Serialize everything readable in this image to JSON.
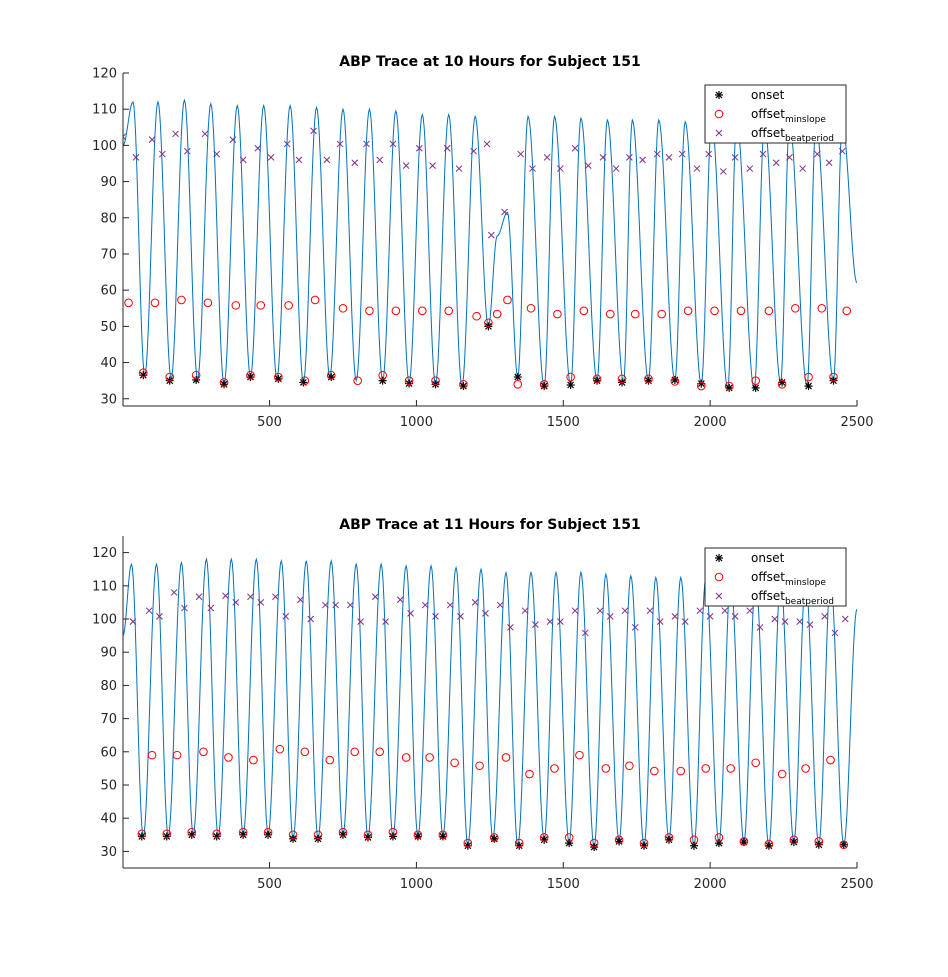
{
  "colors": {
    "trace": "#0072bd",
    "onset": "#000000",
    "offset_minslope": "#ff0000",
    "offset_beatperiod": "#7e2f8e",
    "axis": "#262626"
  },
  "legend": {
    "placement": "top-right",
    "entries": [
      {
        "key": "onset",
        "main": "onset",
        "sub": "",
        "marker": "star-icon"
      },
      {
        "key": "offset_minslope",
        "main": "offset",
        "sub": "minslope",
        "marker": "circle-icon"
      },
      {
        "key": "offset_beatperiod",
        "main": "offset",
        "sub": "beatperiod",
        "marker": "x-icon"
      }
    ]
  },
  "chart_data": [
    {
      "type": "line",
      "title": "ABP Trace at 10 Hours for Subject 151",
      "xlabel": "",
      "ylabel": "",
      "xlim": [
        1,
        2500
      ],
      "ylim": [
        28,
        120
      ],
      "xticks": [
        500,
        1000,
        1500,
        2000,
        2500
      ],
      "yticks": [
        30,
        40,
        50,
        60,
        70,
        80,
        90,
        100,
        110,
        120
      ],
      "grid": false,
      "series": [
        {
          "name": "onset",
          "kind": "marker",
          "x": [
            70,
            160,
            250,
            345,
            435,
            530,
            615,
            710,
            885,
            975,
            1065,
            1160,
            1245,
            1345,
            1435,
            1525,
            1615,
            1700,
            1790,
            1880,
            1970,
            2065,
            2155,
            2245,
            2335,
            2420
          ],
          "y": [
            36.5,
            35,
            35.2,
            34,
            36,
            35.5,
            34.5,
            36,
            35,
            34.2,
            34,
            33.5,
            50,
            36,
            33.5,
            33.8,
            35,
            34.5,
            35,
            35.2,
            34.2,
            33,
            33,
            34.5,
            33.5,
            35
          ]
        },
        {
          "name": "offset_minslope",
          "kind": "marker",
          "x": [
            70,
            160,
            250,
            345,
            435,
            530,
            620,
            710,
            800,
            885,
            975,
            1065,
            1160,
            1245,
            1345,
            1435,
            1525,
            1615,
            1700,
            1790,
            1880,
            1970,
            2065,
            2155,
            2245,
            2335,
            2420,
            20,
            110,
            200,
            290,
            385,
            470,
            565,
            655,
            750,
            840,
            930,
            1020,
            1110,
            1205,
            1275,
            1310,
            1390,
            1480,
            1570,
            1660,
            1745,
            1835,
            1925,
            2015,
            2105,
            2200,
            2290,
            2380,
            2465
          ],
          "y": [
            37.2,
            36,
            36.5,
            34.5,
            36.5,
            36,
            35,
            36.5,
            35,
            36.5,
            35,
            35,
            34,
            51,
            34,
            34,
            36,
            35.5,
            35.5,
            35.5,
            34.8,
            33.5,
            33.5,
            35,
            34,
            36,
            36,
            56.5,
            56.5,
            57.3,
            56.5,
            55.8,
            55.8,
            55.8,
            57.3,
            55,
            54.3,
            54.3,
            54.3,
            54.3,
            52.8,
            53.4,
            57.3,
            55,
            53.4,
            54.3,
            53.4,
            53.4,
            53.4,
            54.3,
            54.3,
            54.3,
            54.3,
            55,
            55,
            54.3
          ]
        },
        {
          "name": "offset_beatperiod",
          "kind": "marker",
          "x": [
            0,
            45,
            100,
            135,
            180,
            220,
            280,
            320,
            375,
            410,
            460,
            505,
            560,
            600,
            650,
            695,
            740,
            790,
            830,
            875,
            920,
            965,
            1010,
            1055,
            1105,
            1145,
            1195,
            1240,
            1255,
            1300,
            1355,
            1395,
            1445,
            1490,
            1540,
            1585,
            1635,
            1680,
            1725,
            1770,
            1820,
            1860,
            1905,
            1955,
            1995,
            2045,
            2085,
            2135,
            2180,
            2225,
            2270,
            2315,
            2365,
            2405,
            2450
          ],
          "y": [
            102.4,
            96.7,
            101.6,
            97.6,
            103.2,
            98.4,
            103.2,
            97.6,
            101.6,
            96,
            99.2,
            96.7,
            100.4,
            96,
            104,
            96,
            100.4,
            95.2,
            100.4,
            96,
            100.4,
            94.4,
            99.2,
            94.4,
            99.2,
            93.6,
            98.4,
            100.4,
            75.2,
            81.6,
            97.6,
            93.6,
            96.7,
            93.6,
            99.2,
            94.4,
            96.7,
            93.6,
            96.7,
            96,
            97.6,
            96.7,
            97.6,
            93.6,
            97.6,
            92.8,
            96.7,
            93.6,
            97.6,
            95.2,
            96.7,
            93.6,
            97.6,
            95.2,
            98.4
          ]
        },
        {
          "name": "trace",
          "kind": "line",
          "peak_x": [
            35,
            120,
            210,
            300,
            390,
            480,
            570,
            660,
            750,
            840,
            930,
            1020,
            1110,
            1200,
            1275,
            1310,
            1380,
            1470,
            1560,
            1650,
            1735,
            1825,
            1915,
            2005,
            2090,
            2185,
            2270,
            2360,
            2450
          ],
          "peak_y": [
            112,
            112,
            112.5,
            111.5,
            111,
            111,
            111,
            110.5,
            110,
            110,
            109.5,
            108.5,
            108.5,
            108,
            75,
            81.5,
            108,
            108,
            107.5,
            107,
            107,
            107,
            106.5,
            106.5,
            106.5,
            106,
            106,
            106,
            106
          ],
          "trough_x": [
            75,
            165,
            255,
            345,
            435,
            525,
            615,
            705,
            795,
            885,
            975,
            1065,
            1155,
            1245,
            1345,
            1435,
            1525,
            1615,
            1705,
            1790,
            1880,
            1970,
            2060,
            2150,
            2240,
            2330,
            2420
          ],
          "trough_y": [
            36.5,
            35.5,
            35.5,
            34,
            36,
            35.5,
            34.5,
            36,
            35,
            35,
            34.5,
            34,
            33.5,
            50,
            36,
            33.5,
            33.8,
            35,
            34.5,
            35,
            35,
            34,
            32.8,
            32.8,
            34.5,
            33.5,
            35
          ],
          "start_y": 100,
          "end_y": 62
        }
      ]
    },
    {
      "type": "line",
      "title": "ABP Trace at 11 Hours for Subject 151",
      "xlabel": "",
      "ylabel": "",
      "xlim": [
        1,
        2500
      ],
      "ylim": [
        25,
        125
      ],
      "xticks": [
        500,
        1000,
        1500,
        2000,
        2500
      ],
      "yticks": [
        30,
        40,
        50,
        60,
        70,
        80,
        90,
        100,
        110,
        120
      ],
      "grid": false,
      "series": [
        {
          "name": "onset",
          "kind": "marker",
          "x": [
            65,
            150,
            235,
            320,
            410,
            495,
            580,
            665,
            750,
            835,
            920,
            1005,
            1090,
            1175,
            1265,
            1350,
            1435,
            1520,
            1605,
            1690,
            1775,
            1860,
            1945,
            2030,
            2115,
            2200,
            2285,
            2370,
            2455
          ],
          "y": [
            34.5,
            34.5,
            35,
            34.5,
            35,
            35,
            33.8,
            33.8,
            35,
            34.2,
            34.5,
            34.5,
            34.5,
            31.7,
            33.8,
            31.7,
            33.5,
            32.5,
            31.3,
            33,
            31.7,
            33.5,
            31.7,
            32.5,
            32.8,
            31.7,
            32.8,
            32,
            32
          ]
        },
        {
          "name": "offset_minslope",
          "kind": "marker",
          "x": [
            65,
            150,
            235,
            320,
            410,
            495,
            580,
            665,
            750,
            835,
            920,
            1005,
            1090,
            1175,
            1265,
            1350,
            1435,
            1520,
            1605,
            1690,
            1775,
            1860,
            1945,
            2030,
            2115,
            2200,
            2285,
            2370,
            2455,
            100,
            185,
            275,
            360,
            445,
            535,
            620,
            705,
            790,
            875,
            965,
            1045,
            1130,
            1215,
            1305,
            1385,
            1470,
            1555,
            1645,
            1725,
            1810,
            1900,
            1985,
            2070,
            2155,
            2245,
            2325,
            2410
          ],
          "y": [
            35.3,
            35.3,
            35.8,
            35.3,
            35.8,
            35.8,
            35,
            35,
            35.8,
            35,
            35.8,
            35,
            35,
            32.5,
            34.2,
            32.5,
            34.2,
            34.2,
            32.5,
            33.5,
            32.5,
            34.2,
            33.5,
            34.2,
            33,
            32.2,
            33.5,
            33,
            32,
            59,
            59,
            60,
            58.3,
            57.5,
            60.8,
            60,
            57.5,
            60,
            60,
            58.3,
            58.3,
            56.7,
            55.8,
            58.3,
            53.3,
            55,
            59,
            55,
            55.8,
            54.2,
            54.2,
            55,
            55,
            56.7,
            53.3,
            55,
            57.5
          ]
        },
        {
          "name": "offset_beatperiod",
          "kind": "marker",
          "x": [
            35,
            90,
            125,
            175,
            210,
            260,
            300,
            350,
            385,
            435,
            470,
            520,
            555,
            605,
            640,
            690,
            725,
            775,
            810,
            860,
            895,
            945,
            980,
            1030,
            1065,
            1115,
            1150,
            1200,
            1235,
            1285,
            1320,
            1370,
            1405,
            1455,
            1490,
            1540,
            1575,
            1625,
            1660,
            1710,
            1745,
            1795,
            1830,
            1880,
            1915,
            1965,
            2000,
            2050,
            2085,
            2135,
            2170,
            2220,
            2255,
            2305,
            2340,
            2390,
            2425,
            2460
          ],
          "y": [
            99.2,
            102.5,
            100.8,
            108,
            103.3,
            106.7,
            103.3,
            107,
            105,
            106.7,
            105,
            106.7,
            100.8,
            105.8,
            100,
            104.2,
            104.2,
            104.2,
            99.2,
            106.7,
            99.2,
            105.8,
            101.7,
            104.2,
            100.8,
            104.2,
            100.8,
            105,
            101.7,
            104.2,
            97.5,
            102.5,
            98.3,
            99.2,
            99.2,
            102.5,
            95.8,
            102.5,
            100.8,
            102.5,
            97.5,
            102.5,
            99.2,
            100.8,
            99.2,
            102.5,
            100.8,
            102.5,
            100.8,
            102.5,
            97.5,
            100,
            99.2,
            99.2,
            98.3,
            100.8,
            95.8,
            100
          ]
        },
        {
          "name": "trace",
          "kind": "line",
          "peak_x": [
            30,
            115,
            200,
            285,
            370,
            455,
            540,
            625,
            710,
            795,
            880,
            965,
            1050,
            1135,
            1220,
            1305,
            1390,
            1475,
            1560,
            1645,
            1730,
            1815,
            1900,
            1985,
            2070,
            2155,
            2240,
            2325,
            2410
          ],
          "peak_y": [
            116.5,
            116.5,
            117,
            118,
            118,
            118,
            117.5,
            117.5,
            117.5,
            116.5,
            116.5,
            116,
            116,
            115.5,
            115,
            114,
            114,
            114,
            114,
            113.5,
            113,
            112.5,
            112.5,
            112,
            112,
            112,
            111.5,
            111.5,
            111.5
          ],
          "trough_x": [
            70,
            155,
            240,
            325,
            410,
            495,
            580,
            665,
            750,
            835,
            920,
            1005,
            1090,
            1175,
            1260,
            1345,
            1435,
            1520,
            1605,
            1690,
            1775,
            1860,
            1945,
            2030,
            2115,
            2200,
            2285,
            2370,
            2455
          ],
          "trough_y": [
            34.5,
            34.5,
            35,
            34.5,
            35,
            35,
            33.8,
            33.8,
            35,
            34.2,
            34.5,
            34.5,
            34.5,
            31.7,
            33.8,
            31.7,
            33.5,
            32.5,
            31.3,
            33,
            31.7,
            33.5,
            31.7,
            32.5,
            32.8,
            31.7,
            32.8,
            32,
            32
          ],
          "start_y": 95,
          "end_y": 103
        }
      ]
    }
  ]
}
